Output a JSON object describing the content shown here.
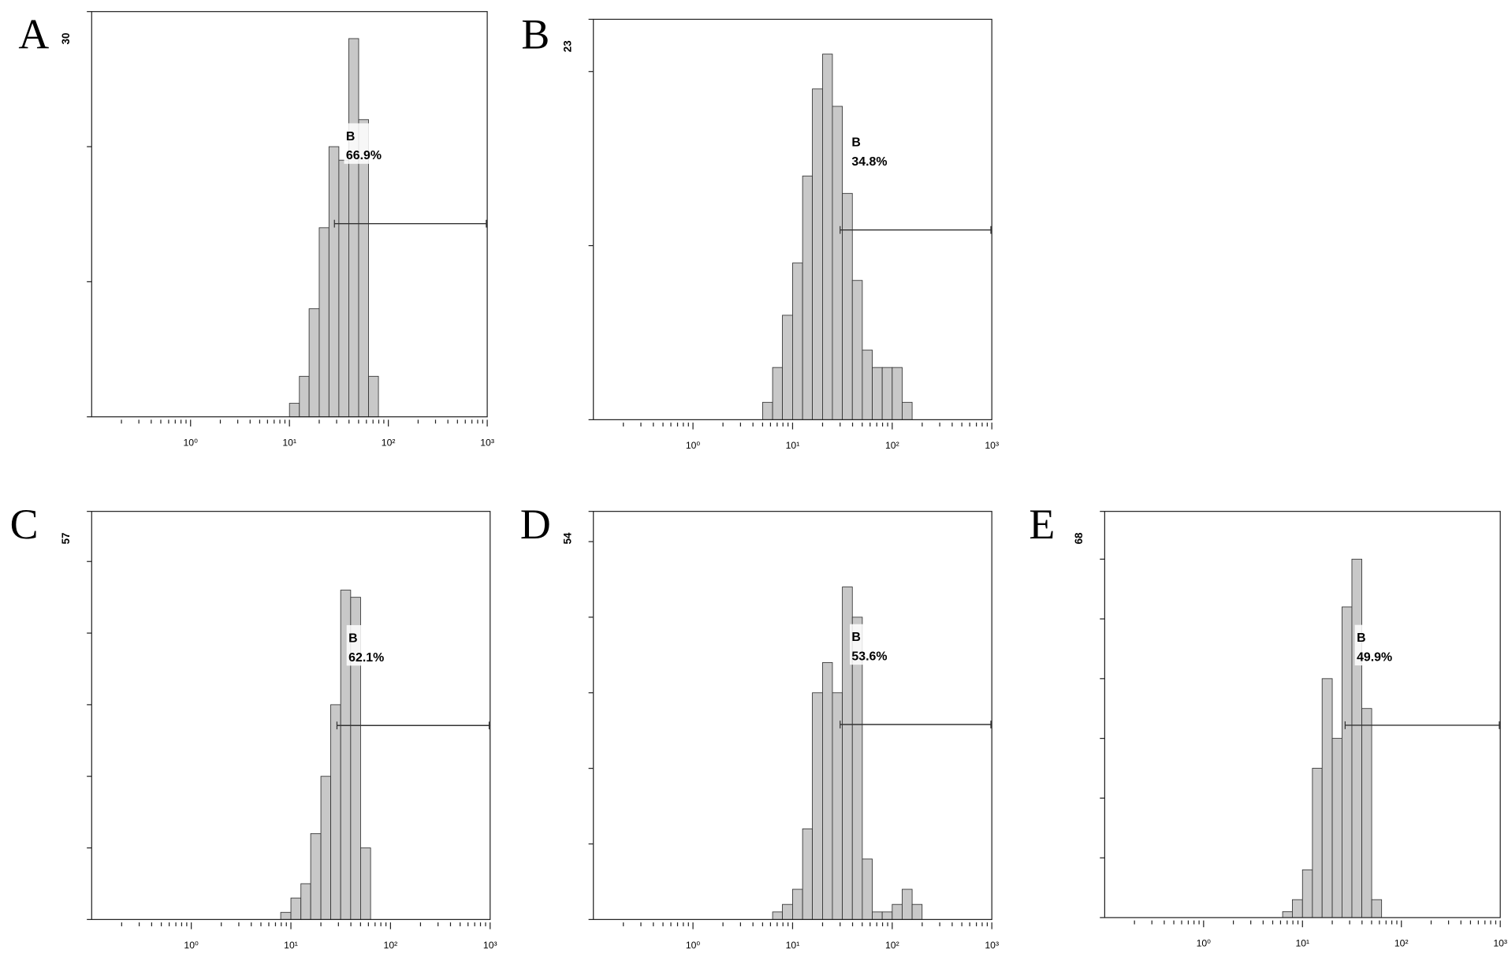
{
  "chart_data": [
    {
      "type": "histogram",
      "panel": "A",
      "xscale": "log",
      "xlim": [
        0.1,
        1000
      ],
      "ylim": [
        0,
        30
      ],
      "xticks": [
        {
          "value": 1,
          "label": "10⁰"
        },
        {
          "value": 10,
          "label": "10¹"
        },
        {
          "value": 100,
          "label": "10²"
        },
        {
          "value": 1000,
          "label": "10³"
        }
      ],
      "xminor_ticks": [
        0.2,
        0.3,
        0.4,
        0.5,
        0.6,
        0.7,
        0.8,
        0.9,
        2,
        3,
        4,
        5,
        6,
        7,
        8,
        9,
        20,
        30,
        40,
        50,
        60,
        70,
        80,
        90,
        200,
        300,
        400,
        500,
        600,
        700,
        800,
        900
      ],
      "yticks": [
        30
      ],
      "yminor_ticks": [
        0,
        10,
        20
      ],
      "color": "#c8c8c8",
      "bins": [
        10,
        12.6,
        15.8,
        20,
        25.1,
        31.6,
        39.8,
        50.1,
        63.1,
        79.4
      ],
      "counts": [
        1,
        3,
        8,
        14,
        20,
        19,
        28,
        22,
        3
      ],
      "gate": {
        "name": "B",
        "percent_label": "66.9%",
        "range": [
          28.5,
          1000
        ],
        "level": 14.3
      }
    },
    {
      "type": "histogram",
      "panel": "B",
      "xscale": "log",
      "xlim": [
        0.1,
        1000
      ],
      "ylim": [
        0,
        23
      ],
      "xticks": [
        {
          "value": 1,
          "label": "10⁰"
        },
        {
          "value": 10,
          "label": "10¹"
        },
        {
          "value": 100,
          "label": "10²"
        },
        {
          "value": 1000,
          "label": "10³"
        }
      ],
      "xminor_ticks": [
        0.2,
        0.3,
        0.4,
        0.5,
        0.6,
        0.7,
        0.8,
        0.9,
        2,
        3,
        4,
        5,
        6,
        7,
        8,
        9,
        20,
        30,
        40,
        50,
        60,
        70,
        80,
        90,
        200,
        300,
        400,
        500,
        600,
        700,
        800,
        900
      ],
      "yticks": [
        23
      ],
      "yminor_ticks": [
        0,
        10,
        20
      ],
      "color": "#c8c8c8",
      "bins": [
        5,
        6.3,
        7.9,
        10,
        12.6,
        15.8,
        20,
        25.1,
        31.6,
        39.8,
        50.1,
        63.1,
        79.4,
        100,
        125.9,
        158.5
      ],
      "counts": [
        1,
        3,
        6,
        9,
        14,
        19,
        21,
        18,
        13,
        8,
        4,
        3,
        3,
        3,
        1
      ],
      "gate": {
        "name": "B",
        "percent_label": "34.8%",
        "range": [
          30,
          1000
        ],
        "level": 10.9
      }
    },
    {
      "type": "histogram",
      "panel": "C",
      "xscale": "log",
      "xlim": [
        0.1,
        1000
      ],
      "ylim": [
        0,
        57
      ],
      "xticks": [
        {
          "value": 1,
          "label": "10⁰"
        },
        {
          "value": 10,
          "label": "10¹"
        },
        {
          "value": 100,
          "label": "10²"
        },
        {
          "value": 1000,
          "label": "10³"
        }
      ],
      "xminor_ticks": [
        0.2,
        0.3,
        0.4,
        0.5,
        0.6,
        0.7,
        0.8,
        0.9,
        2,
        3,
        4,
        5,
        6,
        7,
        8,
        9,
        20,
        30,
        40,
        50,
        60,
        70,
        80,
        90,
        200,
        300,
        400,
        500,
        600,
        700,
        800,
        900
      ],
      "yticks": [
        57
      ],
      "yminor_ticks": [
        0,
        10,
        20,
        30,
        40,
        50
      ],
      "color": "#c8c8c8",
      "bins": [
        7.9,
        10,
        12.6,
        15.8,
        20,
        25.1,
        31.6,
        39.8,
        50.1,
        63.1
      ],
      "counts": [
        1,
        3,
        5,
        12,
        20,
        30,
        46,
        45,
        10
      ],
      "gate": {
        "name": "B",
        "percent_label": "62.1%",
        "range": [
          29,
          1000
        ],
        "level": 27.1
      }
    },
    {
      "type": "histogram",
      "panel": "D",
      "xscale": "log",
      "xlim": [
        0.1,
        1000
      ],
      "ylim": [
        0,
        54
      ],
      "xticks": [
        {
          "value": 1,
          "label": "10⁰"
        },
        {
          "value": 10,
          "label": "10¹"
        },
        {
          "value": 100,
          "label": "10²"
        },
        {
          "value": 1000,
          "label": "10³"
        }
      ],
      "xminor_ticks": [
        0.2,
        0.3,
        0.4,
        0.5,
        0.6,
        0.7,
        0.8,
        0.9,
        2,
        3,
        4,
        5,
        6,
        7,
        8,
        9,
        20,
        30,
        40,
        50,
        60,
        70,
        80,
        90,
        200,
        300,
        400,
        500,
        600,
        700,
        800,
        900
      ],
      "yticks": [
        54
      ],
      "yminor_ticks": [
        0,
        10,
        20,
        30,
        40,
        50
      ],
      "color": "#c8c8c8",
      "bins": [
        6.3,
        7.9,
        10,
        12.6,
        15.8,
        20,
        25.1,
        31.6,
        39.8,
        50.1,
        63.1,
        79.4,
        100,
        125.9,
        158.5,
        199.5
      ],
      "counts": [
        1,
        2,
        4,
        12,
        30,
        34,
        30,
        44,
        40,
        8,
        1,
        1,
        2,
        4,
        2
      ],
      "gate": {
        "name": "B",
        "percent_label": "53.6%",
        "range": [
          30,
          1000
        ],
        "level": 25.8
      }
    },
    {
      "type": "histogram",
      "panel": "E",
      "xscale": "log",
      "xlim": [
        0.1,
        1000
      ],
      "ylim": [
        0,
        68
      ],
      "xticks": [
        {
          "value": 1,
          "label": "10⁰"
        },
        {
          "value": 10,
          "label": "10¹"
        },
        {
          "value": 100,
          "label": "10²"
        },
        {
          "value": 1000,
          "label": "10³"
        }
      ],
      "xminor_ticks": [
        0.2,
        0.3,
        0.4,
        0.5,
        0.6,
        0.7,
        0.8,
        0.9,
        2,
        3,
        4,
        5,
        6,
        7,
        8,
        9,
        20,
        30,
        40,
        50,
        60,
        70,
        80,
        90,
        200,
        300,
        400,
        500,
        600,
        700,
        800,
        900
      ],
      "yticks": [
        68
      ],
      "yminor_ticks": [
        0,
        10,
        20,
        30,
        40,
        50,
        60
      ],
      "color": "#c8c8c8",
      "bins": [
        6.3,
        7.9,
        10,
        12.6,
        15.8,
        20,
        25.1,
        31.6,
        39.8,
        50.1,
        63.1
      ],
      "counts": [
        1,
        3,
        8,
        25,
        40,
        30,
        52,
        60,
        35,
        3
      ],
      "gate": {
        "name": "B",
        "percent_label": "49.9%",
        "range": [
          27,
          1000
        ],
        "level": 32.2
      }
    }
  ]
}
